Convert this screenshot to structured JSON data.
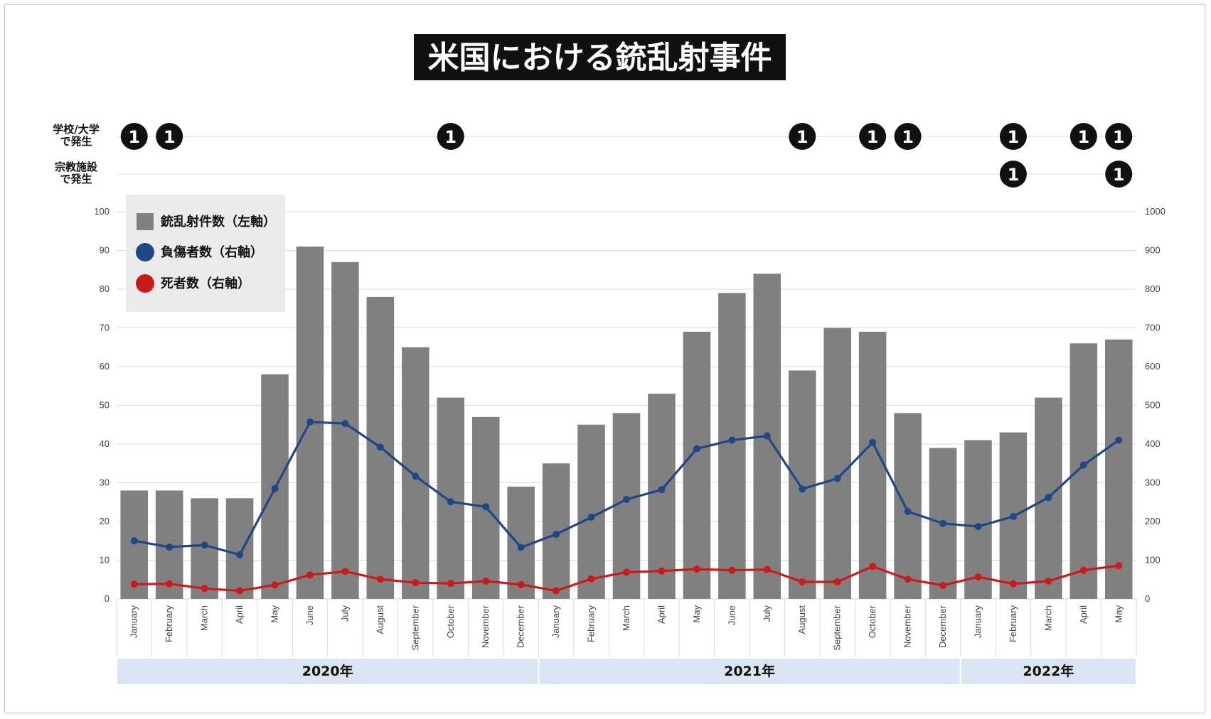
{
  "title": "米国における銃乱射事件",
  "incident_rows": [
    {
      "label_line1": "学校/大学",
      "label_line2": "で発生",
      "marker_text": "1",
      "months": [
        0,
        1,
        9,
        19,
        21,
        22,
        25,
        27,
        28
      ]
    },
    {
      "label_line1": "宗教施設",
      "label_line2": "で発生",
      "marker_text": "1",
      "months": [
        25,
        28
      ]
    }
  ],
  "legend": [
    {
      "label": "銃乱射件数（左軸）",
      "shape": "square",
      "color": "#808080"
    },
    {
      "label": "負傷者数（右軸）",
      "shape": "circle",
      "color": "#1f4788"
    },
    {
      "label": "死者数（右軸）",
      "shape": "circle",
      "color": "#cc1a1a"
    }
  ],
  "years": [
    {
      "label": "2020年",
      "start": 0,
      "end": 11
    },
    {
      "label": "2021年",
      "start": 12,
      "end": 23
    },
    {
      "label": "2022年",
      "start": 24,
      "end": 28
    }
  ],
  "colors": {
    "bar": "#808080",
    "injured": "#1f4788",
    "deaths": "#cc1a1a",
    "year_band": "#dbe4f3",
    "legend_bg": "#ebebeb",
    "title_bg": "#111111"
  },
  "chart_data": {
    "type": "bar",
    "categories": [
      "January",
      "February",
      "March",
      "April",
      "May",
      "June",
      "July",
      "August",
      "September",
      "October",
      "November",
      "December",
      "January",
      "February",
      "March",
      "April",
      "May",
      "June",
      "July",
      "August",
      "September",
      "October",
      "November",
      "December",
      "January",
      "February",
      "March",
      "April",
      "May"
    ],
    "y_left": {
      "min": 0,
      "max": 100,
      "ticks": [
        "0",
        "10",
        "20",
        "30",
        "40",
        "50",
        "60",
        "70",
        "80",
        "90",
        "100"
      ]
    },
    "y_right": {
      "min": 0,
      "max": 1000,
      "ticks": [
        "0",
        "100",
        "200",
        "300",
        "400",
        "500",
        "600",
        "700",
        "800",
        "900",
        "1000"
      ]
    },
    "grid": true,
    "legend_position": "top-left",
    "series": [
      {
        "name": "銃乱射件数（左軸）",
        "type": "bar",
        "axis": "left",
        "values": [
          28,
          28,
          26,
          26,
          58,
          91,
          87,
          78,
          65,
          52,
          47,
          29,
          35,
          45,
          48,
          53,
          69,
          79,
          84,
          59,
          70,
          69,
          48,
          39,
          41,
          43,
          52,
          66,
          67
        ]
      },
      {
        "name": "負傷者数（右軸）",
        "type": "line",
        "axis": "right",
        "values": [
          150,
          134,
          139,
          114,
          285,
          457,
          453,
          392,
          317,
          251,
          238,
          133,
          167,
          211,
          257,
          282,
          388,
          410,
          421,
          284,
          311,
          404,
          226,
          195,
          187,
          213,
          262,
          346,
          410
        ]
      },
      {
        "name": "死者数（右軸）",
        "type": "line",
        "axis": "right",
        "values": [
          38,
          39,
          27,
          21,
          36,
          62,
          71,
          51,
          42,
          40,
          46,
          37,
          21,
          52,
          69,
          72,
          77,
          74,
          76,
          44,
          44,
          84,
          51,
          35,
          57,
          39,
          46,
          74,
          86
        ]
      }
    ]
  }
}
